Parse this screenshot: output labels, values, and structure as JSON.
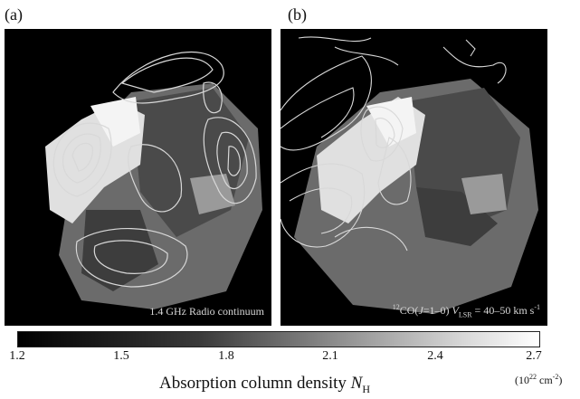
{
  "panels": [
    {
      "label": "(a)",
      "caption": "1.4 GHz  Radio continuum"
    },
    {
      "label": "(b)",
      "caption_pre": "12",
      "caption_mid": "CO(",
      "caption_j": "J",
      "caption_trans": "=1–0) ",
      "caption_v": "V",
      "caption_vsub": "LSR",
      "caption_post": " = 40–50 km s",
      "caption_exp": "-1"
    }
  ],
  "colorbar": {
    "ticks": [
      "1.2",
      "1.5",
      "1.8",
      "2.1",
      "2.4",
      "2.7"
    ],
    "label_text": "Absorption column density ",
    "label_var": "N",
    "label_sub": "H",
    "unit_base": "(10",
    "unit_exp1": "22",
    "unit_mid": " cm",
    "unit_exp2": "-2",
    "unit_close": ")"
  }
}
